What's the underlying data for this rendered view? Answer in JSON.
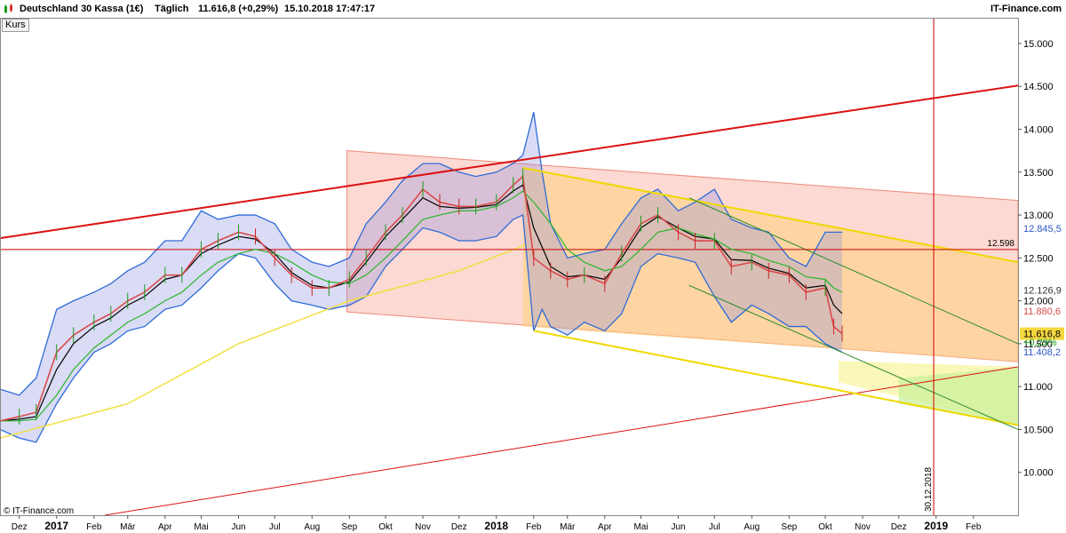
{
  "header": {
    "instrument": "Deutschland 30 Kassa (1€)",
    "period": "Täglich",
    "quote": "11.616,8 (+0,29%)",
    "timestamp": "15.10.2018 17:47:17",
    "brand": "IT-Finance.com"
  },
  "tab_label": "Kurs",
  "copyright": "© IT-Finance.com",
  "chart_data": {
    "type": "line",
    "title": "Deutschland 30 Kassa (1€)",
    "y_ticks": [
      {
        "value": 15000,
        "label": "15.000"
      },
      {
        "value": 14500,
        "label": "14.500"
      },
      {
        "value": 14000,
        "label": "14.000"
      },
      {
        "value": 13500,
        "label": "13.500"
      },
      {
        "value": 13000,
        "label": "13.000"
      },
      {
        "value": 12500,
        "label": "12.500"
      },
      {
        "value": 12000,
        "label": "12.000"
      },
      {
        "value": 11500,
        "label": "11.500"
      },
      {
        "value": 11000,
        "label": "11.000"
      },
      {
        "value": 10500,
        "label": "10.500"
      },
      {
        "value": 10000,
        "label": "10.000"
      }
    ],
    "ylim": [
      9500,
      15300
    ],
    "x_range": [
      "2016-11-15",
      "2019-03-10"
    ],
    "x_ticks": [
      {
        "date": "2016-12-01",
        "label": "Dez",
        "bold": false
      },
      {
        "date": "2017-01-01",
        "label": "2017",
        "bold": true
      },
      {
        "date": "2017-02-01",
        "label": "Feb",
        "bold": false
      },
      {
        "date": "2017-03-01",
        "label": "Mär",
        "bold": false
      },
      {
        "date": "2017-04-01",
        "label": "Apr",
        "bold": false
      },
      {
        "date": "2017-05-01",
        "label": "Mai",
        "bold": false
      },
      {
        "date": "2017-06-01",
        "label": "Jun",
        "bold": false
      },
      {
        "date": "2017-07-01",
        "label": "Jul",
        "bold": false
      },
      {
        "date": "2017-08-01",
        "label": "Aug",
        "bold": false
      },
      {
        "date": "2017-09-01",
        "label": "Sep",
        "bold": false
      },
      {
        "date": "2017-10-01",
        "label": "Okt",
        "bold": false
      },
      {
        "date": "2017-11-01",
        "label": "Nov",
        "bold": false
      },
      {
        "date": "2017-12-01",
        "label": "Dez",
        "bold": false
      },
      {
        "date": "2018-01-01",
        "label": "2018",
        "bold": true
      },
      {
        "date": "2018-02-01",
        "label": "Feb",
        "bold": false
      },
      {
        "date": "2018-03-01",
        "label": "Mär",
        "bold": false
      },
      {
        "date": "2018-04-01",
        "label": "Apr",
        "bold": false
      },
      {
        "date": "2018-05-01",
        "label": "Mai",
        "bold": false
      },
      {
        "date": "2018-06-01",
        "label": "Jun",
        "bold": false
      },
      {
        "date": "2018-07-01",
        "label": "Jul",
        "bold": false
      },
      {
        "date": "2018-08-01",
        "label": "Aug",
        "bold": false
      },
      {
        "date": "2018-09-01",
        "label": "Sep",
        "bold": false
      },
      {
        "date": "2018-10-01",
        "label": "Okt",
        "bold": false
      },
      {
        "date": "2018-11-01",
        "label": "Nov",
        "bold": false
      },
      {
        "date": "2018-12-01",
        "label": "Dez",
        "bold": false
      },
      {
        "date": "2019-01-01",
        "label": "2019",
        "bold": true
      },
      {
        "date": "2019-02-01",
        "label": "Feb",
        "bold": false
      }
    ],
    "price_series": {
      "dates": [
        "2016-11-15",
        "2016-12-01",
        "2016-12-15",
        "2017-01-01",
        "2017-01-15",
        "2017-02-01",
        "2017-02-15",
        "2017-03-01",
        "2017-03-15",
        "2017-04-01",
        "2017-04-15",
        "2017-05-01",
        "2017-05-15",
        "2017-06-01",
        "2017-06-15",
        "2017-07-01",
        "2017-07-15",
        "2017-08-01",
        "2017-08-15",
        "2017-09-01",
        "2017-09-15",
        "2017-10-01",
        "2017-10-15",
        "2017-11-01",
        "2017-11-15",
        "2017-12-01",
        "2017-12-15",
        "2018-01-01",
        "2018-01-15",
        "2018-01-23",
        "2018-02-01",
        "2018-02-15",
        "2018-03-01",
        "2018-03-15",
        "2018-04-01",
        "2018-04-15",
        "2018-05-01",
        "2018-05-15",
        "2018-06-01",
        "2018-06-15",
        "2018-07-01",
        "2018-07-15",
        "2018-08-01",
        "2018-08-15",
        "2018-09-01",
        "2018-09-15",
        "2018-10-01",
        "2018-10-08",
        "2018-10-15"
      ],
      "close": [
        10600,
        10650,
        10700,
        11400,
        11600,
        11750,
        11850,
        12000,
        12100,
        12300,
        12300,
        12600,
        12700,
        12800,
        12750,
        12500,
        12300,
        12150,
        12150,
        12250,
        12500,
        12800,
        13000,
        13300,
        13150,
        13100,
        13100,
        13150,
        13350,
        13450,
        12500,
        12350,
        12250,
        12300,
        12200,
        12550,
        12900,
        13000,
        12800,
        12700,
        12700,
        12400,
        12450,
        12350,
        12300,
        12100,
        12150,
        11700,
        11616.8
      ]
    },
    "moving_averages": [
      {
        "color": "#000000",
        "values": [
          10600,
          10620,
          10650,
          11200,
          11500,
          11700,
          11800,
          11950,
          12050,
          12250,
          12300,
          12550,
          12650,
          12750,
          12720,
          12550,
          12330,
          12180,
          12150,
          12220,
          12450,
          12750,
          12950,
          13200,
          13100,
          13080,
          13090,
          13120,
          13280,
          13350,
          12850,
          12400,
          12280,
          12300,
          12250,
          12500,
          12850,
          12980,
          12850,
          12750,
          12720,
          12480,
          12470,
          12380,
          12320,
          12150,
          12180,
          11950,
          11850
        ]
      },
      {
        "color": "#2ab52a",
        "values": [
          10600,
          10600,
          10620,
          10900,
          11200,
          11450,
          11600,
          11750,
          11850,
          12000,
          12100,
          12300,
          12450,
          12550,
          12600,
          12550,
          12450,
          12300,
          12220,
          12200,
          12300,
          12500,
          12700,
          12950,
          13000,
          13050,
          13050,
          13100,
          13200,
          13280,
          13150,
          12900,
          12600,
          12450,
          12350,
          12400,
          12600,
          12800,
          12850,
          12780,
          12720,
          12600,
          12550,
          12470,
          12400,
          12280,
          12250,
          12150,
          12100
        ]
      }
    ],
    "moving_average_200": {
      "color": "#f0e040",
      "dates": [
        "2016-11-15",
        "2017-03-01",
        "2017-06-01",
        "2017-09-01",
        "2017-12-01",
        "2018-01-25"
      ],
      "values": [
        10400,
        10800,
        11500,
        12000,
        12350,
        12650
      ]
    },
    "bollinger_bands": {
      "dates": [
        "2016-11-15",
        "2016-12-01",
        "2016-12-15",
        "2017-01-01",
        "2017-01-15",
        "2017-02-01",
        "2017-02-15",
        "2017-03-01",
        "2017-03-15",
        "2017-04-01",
        "2017-04-15",
        "2017-05-01",
        "2017-05-15",
        "2017-06-01",
        "2017-06-15",
        "2017-07-01",
        "2017-07-15",
        "2017-08-01",
        "2017-08-15",
        "2017-09-01",
        "2017-09-15",
        "2017-10-01",
        "2017-10-15",
        "2017-11-01",
        "2017-11-15",
        "2017-12-01",
        "2017-12-15",
        "2018-01-01",
        "2018-01-15",
        "2018-01-23",
        "2018-02-01",
        "2018-02-08",
        "2018-02-15",
        "2018-03-01",
        "2018-03-15",
        "2018-04-01",
        "2018-04-15",
        "2018-05-01",
        "2018-05-15",
        "2018-06-01",
        "2018-06-15",
        "2018-07-01",
        "2018-07-15",
        "2018-08-01",
        "2018-08-15",
        "2018-09-01",
        "2018-09-15",
        "2018-10-01",
        "2018-10-15"
      ],
      "upper": [
        10970,
        10900,
        11100,
        11900,
        12000,
        12100,
        12200,
        12350,
        12450,
        12700,
        12700,
        13050,
        12950,
        13000,
        13000,
        12900,
        12600,
        12450,
        12400,
        12500,
        12900,
        13150,
        13400,
        13600,
        13600,
        13500,
        13450,
        13500,
        13600,
        13700,
        14200,
        13500,
        12900,
        12500,
        12550,
        12600,
        12900,
        13200,
        13300,
        13050,
        13150,
        13300,
        12950,
        12850,
        12800,
        12500,
        12400,
        12800,
        12800
      ],
      "lower": [
        10500,
        10400,
        10350,
        10800,
        11100,
        11400,
        11500,
        11650,
        11700,
        11900,
        11950,
        12150,
        12350,
        12550,
        12500,
        12200,
        12000,
        11950,
        11900,
        11950,
        12050,
        12400,
        12600,
        12850,
        12800,
        12700,
        12700,
        12750,
        12950,
        13000,
        11650,
        11900,
        11700,
        11600,
        11750,
        11650,
        11850,
        12400,
        12550,
        12500,
        12450,
        12050,
        11750,
        11950,
        11850,
        11700,
        11700,
        11500,
        11400
      ]
    },
    "price_labels": [
      {
        "value": 12845.5,
        "label": "12.845,5",
        "color": "#2e56c7"
      },
      {
        "value": 12126.9,
        "label": "12.126,9",
        "color": "#333333"
      },
      {
        "value": 11880.6,
        "label": "11.880,6",
        "color": "#d94a4a"
      },
      {
        "value": 11616.8,
        "label": "11.616,8",
        "color": "#000000",
        "bg": "#f5d840"
      },
      {
        "value": 11520,
        "label": "+0,29%",
        "color": "#159c15"
      },
      {
        "value": 11408.2,
        "label": "11.408,2",
        "color": "#2e56c7"
      }
    ],
    "horizontal_line": {
      "value": 12598,
      "label": "12.598",
      "color": "#cc0000"
    },
    "vertical_line": {
      "date": "2018-12-30",
      "label": "30.12.2018",
      "color": "#cc0000"
    },
    "trend_lines": [
      {
        "color": "#dd1111",
        "width": 2,
        "from": {
          "date": "2016-11-15",
          "value": 12730
        },
        "to": {
          "date": "2019-03-10",
          "value": 14510
        }
      },
      {
        "color": "#dd1111",
        "width": 1,
        "from": {
          "date": "2017-02-10",
          "value": 9500
        },
        "to": {
          "date": "2019-03-10",
          "value": 11230
        }
      },
      {
        "color": "#f0d800",
        "width": 2,
        "from": {
          "date": "2018-01-23",
          "value": 13550
        },
        "to": {
          "date": "2019-03-10",
          "value": 12450
        }
      },
      {
        "color": "#f0d800",
        "width": 2,
        "from": {
          "date": "2018-02-01",
          "value": 11650
        },
        "to": {
          "date": "2019-03-10",
          "value": 10550
        }
      },
      {
        "color": "#2e8b2e",
        "width": 1,
        "from": {
          "date": "2018-06-10",
          "value": 13200
        },
        "to": {
          "date": "2019-03-10",
          "value": 11500
        }
      },
      {
        "color": "#2e8b2e",
        "width": 1,
        "from": {
          "date": "2018-06-10",
          "value": 12180
        },
        "to": {
          "date": "2019-03-10",
          "value": 10500
        }
      }
    ],
    "channels": [
      {
        "fill": "#f9b9ad",
        "opacity": 0.55,
        "stroke": "#ee8a7a",
        "upper": {
          "from": {
            "date": "2017-08-30",
            "value": 13750
          },
          "to": {
            "date": "2019-03-10",
            "value": 13170
          }
        },
        "lower": {
          "from": {
            "date": "2017-08-30",
            "value": 11870
          },
          "to": {
            "date": "2019-03-10",
            "value": 11290
          }
        }
      },
      {
        "fill": "#ffd27a",
        "opacity": 0.55,
        "stroke": "none",
        "upper": {
          "from": {
            "date": "2018-01-23",
            "value": 13550
          },
          "to": {
            "date": "2019-03-10",
            "value": 12450
          }
        },
        "lower": {
          "from": {
            "date": "2018-01-23",
            "value": 11700
          },
          "to": {
            "date": "2019-03-10",
            "value": 11290
          }
        }
      },
      {
        "fill": "#f8f59a",
        "opacity": 0.7,
        "stroke": "none",
        "upper": {
          "from": {
            "date": "2018-10-12",
            "value": 11300
          },
          "to": {
            "date": "2019-03-10",
            "value": 11230
          }
        },
        "lower": {
          "from": {
            "date": "2018-10-12",
            "value": 11050
          },
          "to": {
            "date": "2019-03-10",
            "value": 10550
          }
        }
      },
      {
        "fill": "#c8ef9a",
        "opacity": 0.7,
        "stroke": "none",
        "upper": {
          "from": {
            "date": "2018-12-01",
            "value": 11100
          },
          "to": {
            "date": "2019-03-10",
            "value": 11230
          }
        },
        "lower": {
          "from": {
            "date": "2018-12-01",
            "value": 10800
          },
          "to": {
            "date": "2019-03-10",
            "value": 10550
          }
        }
      }
    ],
    "grid": false
  }
}
